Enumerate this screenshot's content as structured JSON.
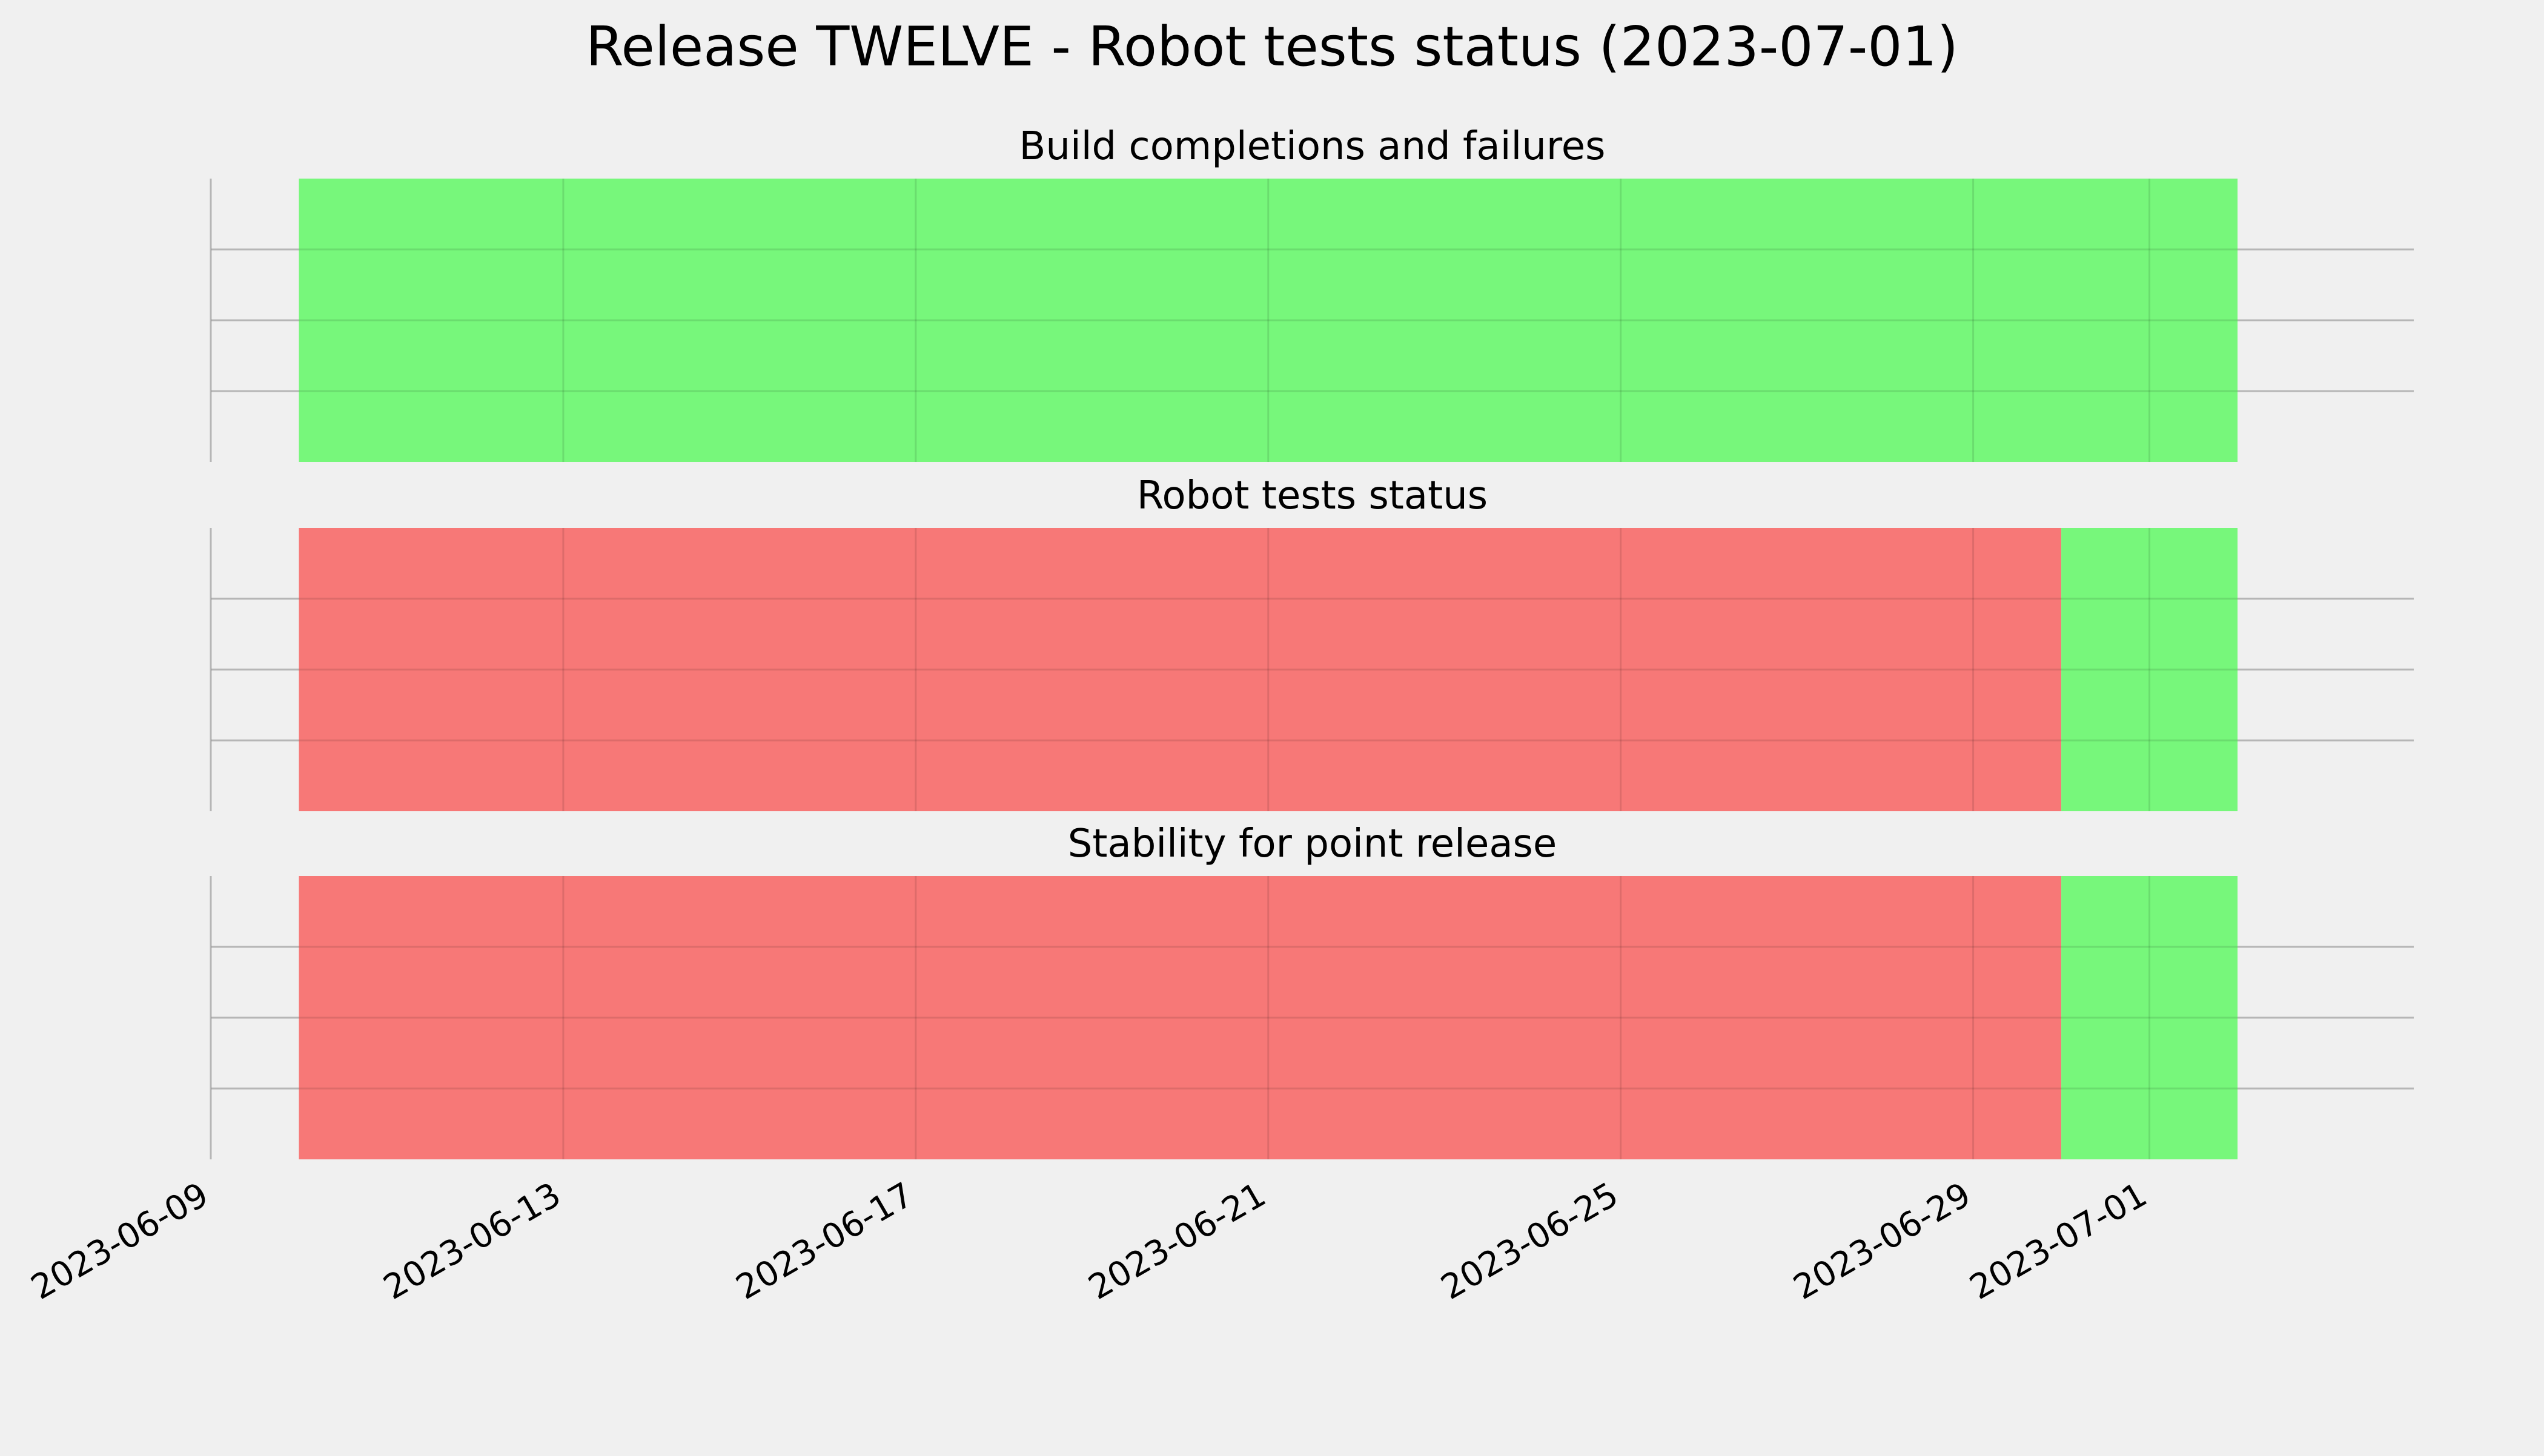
{
  "title": "Release TWELVE - Robot tests status (2023-07-01)",
  "colors": {
    "background": "#f0f0f0",
    "pass": "#77f77b",
    "fail": "#f77877",
    "grid": "#cbcbcb"
  },
  "chart_data": {
    "type": "timeline",
    "x_axis": {
      "type": "date",
      "range": [
        "2023-06-09",
        "2023-07-04"
      ],
      "ticks": [
        "2023-06-09",
        "2023-06-13",
        "2023-06-17",
        "2023-06-21",
        "2023-06-25",
        "2023-06-29",
        "2023-07-01"
      ]
    },
    "grid": true,
    "panels": [
      {
        "title": "Build completions and failures",
        "segments": [
          {
            "start": "2023-06-10",
            "end": "2023-07-02",
            "status": "pass"
          }
        ]
      },
      {
        "title": "Robot tests status",
        "segments": [
          {
            "start": "2023-06-10",
            "end": "2023-06-30",
            "status": "fail"
          },
          {
            "start": "2023-06-30",
            "end": "2023-07-02",
            "status": "pass"
          }
        ]
      },
      {
        "title": "Stability for point release",
        "segments": [
          {
            "start": "2023-06-10",
            "end": "2023-06-30",
            "status": "fail"
          },
          {
            "start": "2023-06-30",
            "end": "2023-07-02",
            "status": "pass"
          }
        ]
      }
    ]
  }
}
